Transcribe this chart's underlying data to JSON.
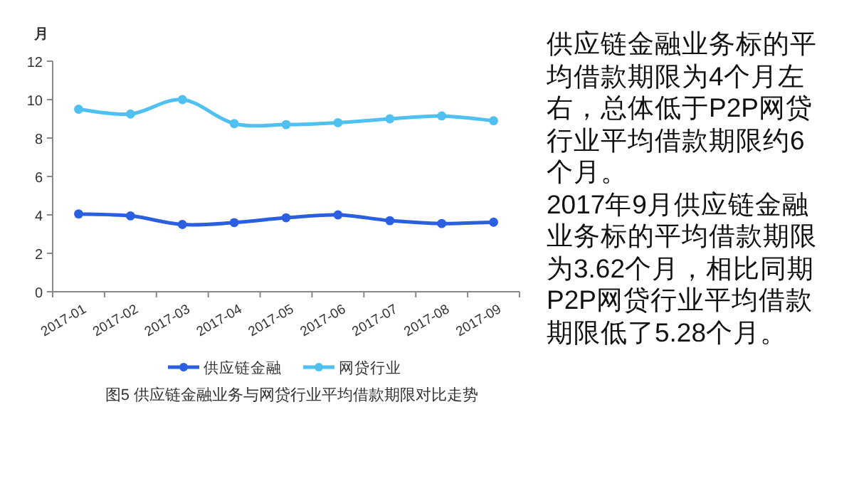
{
  "chart_data": {
    "type": "line",
    "ylabel": "月",
    "categories": [
      "2017-01",
      "2017-02",
      "2017-03",
      "2017-04",
      "2017-05",
      "2017-06",
      "2017-07",
      "2017-08",
      "2017-09"
    ],
    "series": [
      {
        "name": "供应链金融",
        "color": "#2a5fe0",
        "values": [
          4.05,
          3.95,
          3.5,
          3.6,
          3.85,
          4.0,
          3.7,
          3.55,
          3.62
        ]
      },
      {
        "name": "网贷行业",
        "color": "#4fc0f0",
        "values": [
          9.5,
          9.25,
          10.0,
          8.75,
          8.7,
          8.8,
          9.0,
          9.15,
          8.9
        ]
      }
    ],
    "ylim": [
      0,
      12
    ],
    "yticks": [
      0,
      2,
      4,
      6,
      8,
      10,
      12
    ],
    "grid": false,
    "legend": "bottom",
    "marker": "circle",
    "line_style": "solid",
    "annotations": [
      "图5 供应链金融业务与网贷行业平均借款期限对比走势",
      "供应链金融业务标的平均借款期限为4个月左右，总体低于P2P网贷行业平均借款期限约6个月。",
      "2017年9月供应链金融业务标的平均借款期限为3.62个月，相比同期P2P网贷行业平均借款期限低了5.28个月。"
    ]
  }
}
